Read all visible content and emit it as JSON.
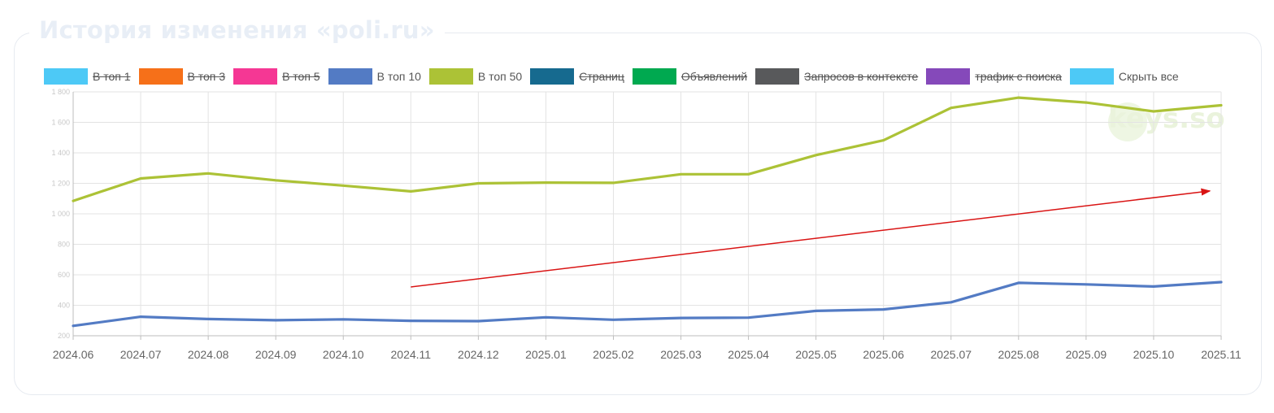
{
  "panel": {
    "title": "История изменения «poli.ru»"
  },
  "legend": {
    "items": [
      {
        "label": "В топ 1",
        "color": "#4dc9f6",
        "hidden": true
      },
      {
        "label": "В топ 3",
        "color": "#f67019",
        "hidden": true
      },
      {
        "label": "В топ 5",
        "color": "#f53794",
        "hidden": true
      },
      {
        "label": "В топ 10",
        "color": "#537bc4",
        "hidden": false
      },
      {
        "label": "В топ 50",
        "color": "#acc236",
        "hidden": false
      },
      {
        "label": "Страниц",
        "color": "#166a8f",
        "hidden": true
      },
      {
        "label": "Объявлений",
        "color": "#00a950",
        "hidden": true
      },
      {
        "label": "Запросов в контексте",
        "color": "#58595b",
        "hidden": true
      },
      {
        "label": "трафик с поиска",
        "color": "#8549ba",
        "hidden": true
      }
    ],
    "hide_all": {
      "label": "Скрыть все",
      "color": "#4dc9f6"
    }
  },
  "watermark": "keys.so",
  "chart_data": {
    "type": "line",
    "categories": [
      "2024.06",
      "2024.07",
      "2024.08",
      "2024.09",
      "2024.10",
      "2024.11",
      "2024.12",
      "2025.01",
      "2025.02",
      "2025.03",
      "2025.04",
      "2025.05",
      "2025.06",
      "2025.07",
      "2025.08",
      "2025.09",
      "2025.10",
      "2025.11"
    ],
    "y_ticks": [
      "200",
      "400",
      "600",
      "800",
      "1 000",
      "1 200",
      "1 400",
      "1 600",
      "1 800"
    ],
    "ylim": [
      200,
      1800
    ],
    "grid": true,
    "legend_position": "top",
    "series": [
      {
        "name": "В топ 10",
        "color": "#537bc4",
        "values": [
          265,
          325,
          310,
          302,
          308,
          298,
          296,
          321,
          305,
          317,
          319,
          363,
          373,
          420,
          547,
          537,
          523,
          552
        ]
      },
      {
        "name": "В топ 50",
        "color": "#acc236",
        "values": [
          1085,
          1232,
          1265,
          1220,
          1185,
          1147,
          1200,
          1205,
          1203,
          1260,
          1260,
          1385,
          1482,
          1695,
          1762,
          1730,
          1672,
          1712
        ]
      }
    ],
    "annotations": [
      {
        "type": "arrow",
        "color": "#d91414",
        "from": {
          "x": "2024.11",
          "y": 520
        },
        "to": {
          "x": "2025.11",
          "y": 1150
        }
      }
    ]
  }
}
